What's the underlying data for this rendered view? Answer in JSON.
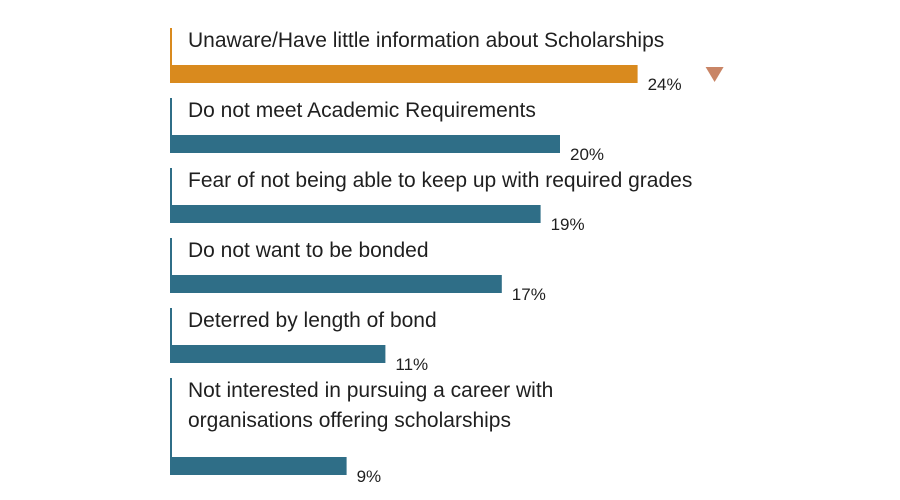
{
  "chart_data": {
    "type": "bar",
    "orientation": "horizontal",
    "categories": [
      [
        "Unaware/Have little information about Scholarships"
      ],
      [
        "Do not meet Academic Requirements"
      ],
      [
        "Fear of not being able to keep up with required grades"
      ],
      [
        "Do not want to be bonded"
      ],
      [
        "Deterred by length of bond"
      ],
      [
        "Not interested in pursuing a career with",
        "organisations offering scholarships"
      ]
    ],
    "values": [
      24,
      20,
      19,
      17,
      11,
      9
    ],
    "value_labels": [
      "24%",
      "20%",
      "19%",
      "17%",
      "11%",
      "9%"
    ],
    "unit": "%",
    "highlight_index": 0,
    "highlight_marker": "down-triangle",
    "colors": {
      "highlight": "#D98A1E",
      "bar": "#2F6E87",
      "marker": "#C98566",
      "axis_highlight": "#D98A1E",
      "axis": "#2F6E87"
    },
    "grid": false,
    "legend": "none"
  }
}
